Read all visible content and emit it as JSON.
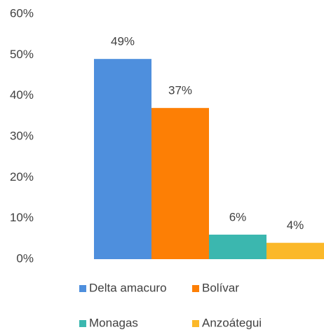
{
  "chart_data": {
    "type": "bar",
    "categories": [
      null
    ],
    "series": [
      {
        "name": "Delta amacuro",
        "color": "#4e8fdd",
        "values": [
          49
        ],
        "value_labels": [
          "49%"
        ]
      },
      {
        "name": "Bolívar",
        "color": "#fd7f05",
        "values": [
          37
        ],
        "value_labels": [
          "37%"
        ]
      },
      {
        "name": "Monagas",
        "color": "#3bb7af",
        "values": [
          6
        ],
        "value_labels": [
          "6%"
        ]
      },
      {
        "name": "Anzoátegui",
        "color": "#fbb829",
        "values": [
          4
        ],
        "value_labels": [
          "4%"
        ]
      }
    ],
    "ylim": [
      0,
      60
    ],
    "yticks": [
      {
        "value": 0,
        "label": "0%"
      },
      {
        "value": 10,
        "label": "10%"
      },
      {
        "value": 20,
        "label": "20%"
      },
      {
        "value": 30,
        "label": "30%"
      },
      {
        "value": 40,
        "label": "40%"
      },
      {
        "value": 50,
        "label": "50%"
      },
      {
        "value": 60,
        "label": "60%"
      }
    ],
    "grid": false,
    "legend": "bottom"
  }
}
